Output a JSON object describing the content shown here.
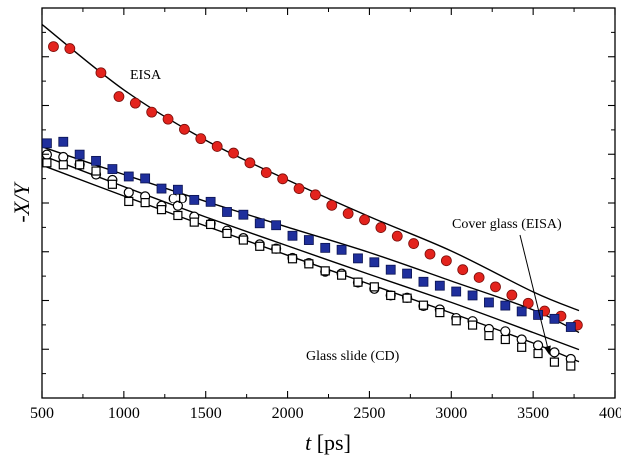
{
  "chart_data": {
    "type": "scatter",
    "xlabel_italic": "t",
    "xlabel_unit": " [ps]",
    "ylabel": "-X/Y",
    "xlim": [
      500,
      4000
    ],
    "ylim": [
      0,
      1
    ],
    "x_ticks": [
      500,
      1000,
      1500,
      2000,
      2500,
      3000,
      3500,
      4000
    ],
    "y_tick_count_inner": 7,
    "y_tick_labels_shown": false,
    "grid": false,
    "legend": "none",
    "annotations": [
      {
        "text": "EISA",
        "series": "eisa_red_filled_circles"
      },
      {
        "text": "CD",
        "series": "cd_blue_filled_squares"
      },
      {
        "text": "Cover glass (EISA)",
        "series": "cover_glass_open_circles",
        "arrow": true
      },
      {
        "text": "Glass slide (CD)",
        "series": "glass_slide_open_squares"
      }
    ],
    "series": [
      {
        "marker": "filled-circle",
        "color": "#e3231d",
        "x": [
          570,
          670,
          860,
          970,
          1070,
          1170,
          1270,
          1370,
          1470,
          1570,
          1670,
          1770,
          1870,
          1970,
          2070,
          2170,
          2270,
          2370,
          2470,
          2570,
          2670,
          2770,
          2870,
          2970,
          3070,
          3170,
          3270,
          3370,
          3470,
          3570,
          3670,
          3770
        ],
        "y": [
          0.901,
          0.896,
          0.834,
          0.773,
          0.756,
          0.733,
          0.715,
          0.689,
          0.665,
          0.645,
          0.628,
          0.603,
          0.578,
          0.562,
          0.537,
          0.521,
          0.494,
          0.473,
          0.457,
          0.437,
          0.415,
          0.396,
          0.369,
          0.352,
          0.329,
          0.309,
          0.285,
          0.264,
          0.243,
          0.223,
          0.21,
          0.187
        ],
        "fit": [
          [
            500,
            0.958
          ],
          [
            1000,
            0.79
          ],
          [
            1500,
            0.661
          ],
          [
            2000,
            0.559
          ],
          [
            2500,
            0.465
          ],
          [
            3000,
            0.377
          ],
          [
            3500,
            0.272
          ],
          [
            3780,
            0.224
          ]
        ]
      },
      {
        "marker": "filled-square",
        "color": "#1f2f9c",
        "x": [
          530,
          630,
          730,
          830,
          930,
          1030,
          1130,
          1230,
          1330,
          1430,
          1530,
          1630,
          1730,
          1830,
          1930,
          2030,
          2130,
          2230,
          2330,
          2430,
          2530,
          2630,
          2730,
          2830,
          2930,
          3030,
          3130,
          3230,
          3330,
          3430,
          3530,
          3630,
          3730
        ],
        "y": [
          0.653,
          0.657,
          0.624,
          0.608,
          0.587,
          0.568,
          0.563,
          0.537,
          0.534,
          0.508,
          0.503,
          0.477,
          0.47,
          0.448,
          0.443,
          0.416,
          0.405,
          0.385,
          0.38,
          0.358,
          0.348,
          0.329,
          0.319,
          0.298,
          0.288,
          0.273,
          0.263,
          0.245,
          0.237,
          0.222,
          0.213,
          0.203,
          0.182
        ],
        "fit": [
          [
            500,
            0.644
          ],
          [
            1000,
            0.573
          ],
          [
            1500,
            0.504
          ],
          [
            2000,
            0.438
          ],
          [
            2500,
            0.373
          ],
          [
            3000,
            0.3
          ],
          [
            3500,
            0.226
          ],
          [
            3780,
            0.168
          ]
        ]
      },
      {
        "marker": "open-circle",
        "color": "#000000",
        "x": [
          530,
          630,
          730,
          830,
          930,
          1030,
          1130,
          1230,
          1330,
          1430,
          1530,
          1630,
          1730,
          1830,
          1930,
          2030,
          2130,
          2230,
          2330,
          2430,
          2530,
          2630,
          2730,
          2830,
          2930,
          3030,
          3130,
          3230,
          3330,
          3430,
          3530,
          3630,
          3730
        ],
        "y": [
          0.624,
          0.618,
          0.598,
          0.573,
          0.559,
          0.527,
          0.517,
          0.493,
          0.493,
          0.465,
          0.447,
          0.429,
          0.41,
          0.394,
          0.383,
          0.359,
          0.346,
          0.324,
          0.319,
          0.296,
          0.28,
          0.263,
          0.257,
          0.236,
          0.227,
          0.205,
          0.197,
          0.177,
          0.171,
          0.15,
          0.135,
          0.117,
          0.1
        ],
        "fit": [
          [
            500,
            0.622
          ],
          [
            1000,
            0.542
          ],
          [
            1500,
            0.464
          ],
          [
            2000,
            0.39
          ],
          [
            2500,
            0.317
          ],
          [
            3000,
            0.245
          ],
          [
            3500,
            0.168
          ],
          [
            3780,
            0.124
          ]
        ]
      },
      {
        "marker": "open-square",
        "color": "#000000",
        "x": [
          530,
          630,
          730,
          830,
          930,
          1030,
          1130,
          1230,
          1330,
          1430,
          1530,
          1630,
          1730,
          1830,
          1930,
          2030,
          2130,
          2230,
          2330,
          2430,
          2530,
          2630,
          2730,
          2830,
          2930,
          3030,
          3130,
          3230,
          3330,
          3430,
          3530,
          3630,
          3730
        ],
        "y": [
          0.603,
          0.598,
          0.598,
          0.582,
          0.548,
          0.504,
          0.501,
          0.483,
          0.468,
          0.451,
          0.445,
          0.422,
          0.405,
          0.389,
          0.382,
          0.357,
          0.344,
          0.326,
          0.315,
          0.297,
          0.285,
          0.263,
          0.256,
          0.238,
          0.219,
          0.198,
          0.187,
          0.16,
          0.15,
          0.13,
          0.114,
          0.092,
          0.082
        ],
        "fit": [
          [
            500,
            0.597
          ],
          [
            1000,
            0.518
          ],
          [
            1500,
            0.441
          ],
          [
            2000,
            0.366
          ],
          [
            2500,
            0.292
          ],
          [
            3000,
            0.218
          ],
          [
            3500,
            0.141
          ],
          [
            3780,
            0.093
          ]
        ]
      }
    ],
    "annotation_arrow_tip": [
      3600,
      0.11
    ]
  }
}
